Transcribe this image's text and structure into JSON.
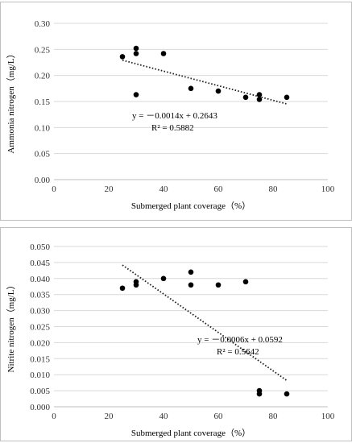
{
  "chart_data": [
    {
      "type": "scatter",
      "xlabel": "Submerged plant coverage（%）",
      "ylabel": "Ammonia nitrogen（mg/L）",
      "xlim": [
        0,
        100
      ],
      "ylim": [
        0,
        0.3
      ],
      "x_ticks": [
        "0",
        "20",
        "40",
        "60",
        "80",
        "100"
      ],
      "y_ticks": [
        "0.00",
        "0.05",
        "0.10",
        "0.15",
        "0.20",
        "0.25",
        "0.30"
      ],
      "grid": "horizontal",
      "points": [
        {
          "x": 25,
          "y": 0.236
        },
        {
          "x": 30,
          "y": 0.252
        },
        {
          "x": 30,
          "y": 0.242
        },
        {
          "x": 30,
          "y": 0.163
        },
        {
          "x": 40,
          "y": 0.242
        },
        {
          "x": 50,
          "y": 0.175
        },
        {
          "x": 60,
          "y": 0.17
        },
        {
          "x": 70,
          "y": 0.158
        },
        {
          "x": 75,
          "y": 0.163
        },
        {
          "x": 75,
          "y": 0.154
        },
        {
          "x": 85,
          "y": 0.158
        }
      ],
      "trendline": {
        "slope": -0.0014,
        "intercept": 0.2643,
        "x_range": [
          25,
          85
        ],
        "style": "dotted"
      },
      "equation": "y = －0.0014x + 0.2643",
      "r2": "R² = 0.5882"
    },
    {
      "type": "scatter",
      "xlabel": "Submerged plant coverage（%）",
      "ylabel": "Nitrite nitrogen（mg/L）",
      "xlim": [
        0,
        100
      ],
      "ylim": [
        0,
        0.05
      ],
      "x_ticks": [
        "0",
        "20",
        "40",
        "60",
        "80",
        "100"
      ],
      "y_ticks": [
        "0.000",
        "0.005",
        "0.010",
        "0.015",
        "0.020",
        "0.025",
        "0.030",
        "0.035",
        "0.040",
        "0.045",
        "0.050"
      ],
      "grid": "horizontal",
      "points": [
        {
          "x": 25,
          "y": 0.037
        },
        {
          "x": 30,
          "y": 0.039
        },
        {
          "x": 30,
          "y": 0.038
        },
        {
          "x": 40,
          "y": 0.04
        },
        {
          "x": 50,
          "y": 0.042
        },
        {
          "x": 50,
          "y": 0.038
        },
        {
          "x": 60,
          "y": 0.038
        },
        {
          "x": 70,
          "y": 0.039
        },
        {
          "x": 75,
          "y": 0.005
        },
        {
          "x": 75,
          "y": 0.004
        },
        {
          "x": 85,
          "y": 0.004
        }
      ],
      "trendline": {
        "slope": -0.0006,
        "intercept": 0.0592,
        "x_range": [
          25,
          85
        ],
        "style": "dotted"
      },
      "equation": "y = －0.0006x + 0.0592",
      "r2": "R² = 0.5642"
    }
  ]
}
